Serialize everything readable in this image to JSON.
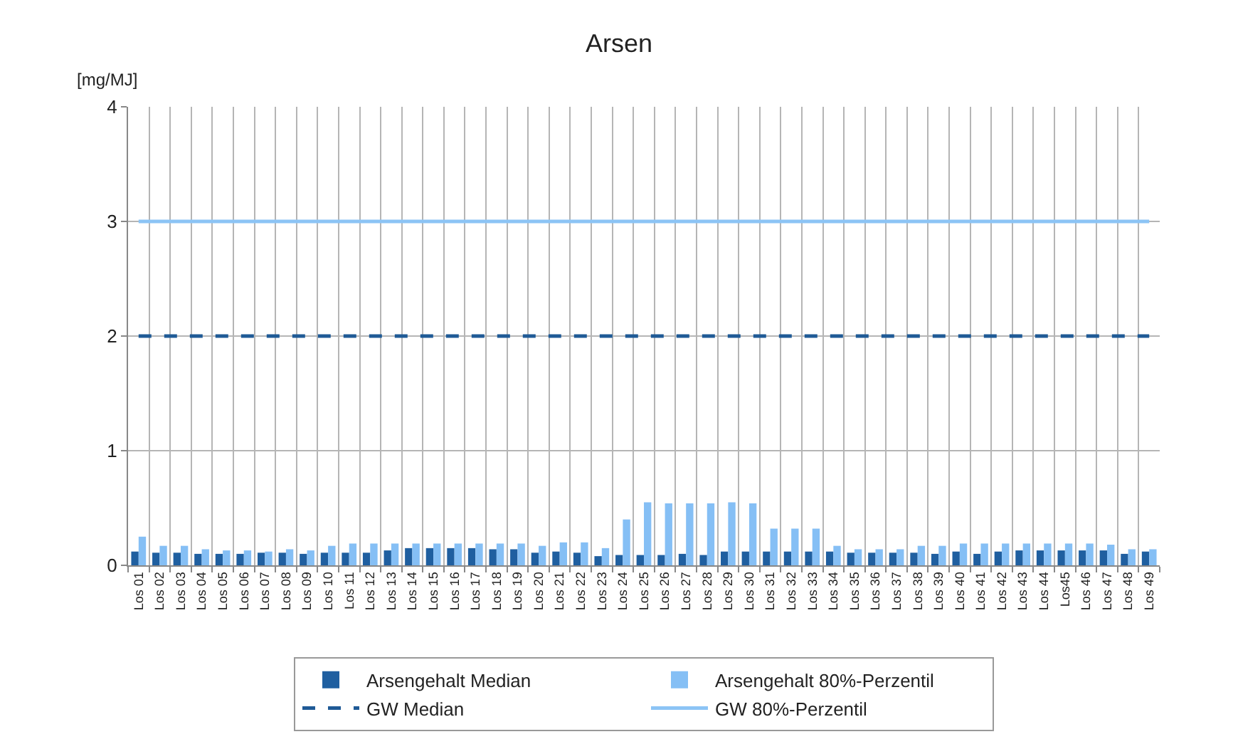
{
  "chart_data": {
    "type": "bar",
    "title": "Arsen",
    "ylabel": "[mg/MJ]",
    "categories": [
      "Los 01",
      "Los 02",
      "Los 03",
      "Los 04",
      "Los 05",
      "Los 06",
      "Los 07",
      "Los 08",
      "Los 09",
      "Los 10",
      "Los 11",
      "Los 12",
      "Los 13",
      "Los 14",
      "Los 15",
      "Los 16",
      "Los 17",
      "Los 18",
      "Los 19",
      "Los 20",
      "Los 21",
      "Los 22",
      "Los 23",
      "Los 24",
      "Los 25",
      "Los 26",
      "Los 27",
      "Los 28",
      "Los 29",
      "Los 30",
      "Los 31",
      "Los 32",
      "Los 33",
      "Los 34",
      "Los 35",
      "Los 36",
      "Los 37",
      "Los 38",
      "Los 39",
      "Los 40",
      "Los 41",
      "Los 42",
      "Los 43",
      "Los 44",
      "Los45",
      "Los 46",
      "Los 47",
      "Los 48",
      "Los 49"
    ],
    "series": [
      {
        "name": "Arsengehalt Median",
        "color": "#1f5fa0",
        "values": [
          0.12,
          0.11,
          0.11,
          0.1,
          0.1,
          0.1,
          0.11,
          0.11,
          0.1,
          0.11,
          0.11,
          0.11,
          0.13,
          0.15,
          0.15,
          0.15,
          0.15,
          0.14,
          0.14,
          0.11,
          0.12,
          0.11,
          0.08,
          0.09,
          0.09,
          0.09,
          0.1,
          0.09,
          0.12,
          0.12,
          0.12,
          0.12,
          0.12,
          0.12,
          0.11,
          0.11,
          0.11,
          0.11,
          0.1,
          0.12,
          0.1,
          0.12,
          0.13,
          0.13,
          0.13,
          0.13,
          0.13,
          0.1,
          0.12
        ]
      },
      {
        "name": "Arsengehalt 80%-Perzentil",
        "color": "#85bff5",
        "values": [
          0.25,
          0.17,
          0.17,
          0.14,
          0.13,
          0.13,
          0.12,
          0.14,
          0.13,
          0.17,
          0.19,
          0.19,
          0.19,
          0.19,
          0.19,
          0.19,
          0.19,
          0.19,
          0.19,
          0.17,
          0.2,
          0.2,
          0.15,
          0.4,
          0.55,
          0.54,
          0.54,
          0.54,
          0.55,
          0.54,
          0.32,
          0.32,
          0.32,
          0.17,
          0.14,
          0.14,
          0.14,
          0.17,
          0.17,
          0.19,
          0.19,
          0.19,
          0.19,
          0.19,
          0.19,
          0.19,
          0.18,
          0.14,
          0.14
        ]
      },
      {
        "name": "GW Median",
        "type": "line",
        "line_style": "dashed",
        "color": "#1f5a96",
        "values": [
          2,
          2,
          2,
          2,
          2,
          2,
          2,
          2,
          2,
          2,
          2,
          2,
          2,
          2,
          2,
          2,
          2,
          2,
          2,
          2,
          2,
          2,
          2,
          2,
          2,
          2,
          2,
          2,
          2,
          2,
          2,
          2,
          2,
          2,
          2,
          2,
          2,
          2,
          2,
          2,
          2,
          2,
          2,
          2,
          2,
          2,
          2,
          2,
          2
        ]
      },
      {
        "name": "GW 80%-Perzentil",
        "type": "line",
        "line_style": "solid",
        "color": "#8cc4f5",
        "values": [
          3,
          3,
          3,
          3,
          3,
          3,
          3,
          3,
          3,
          3,
          3,
          3,
          3,
          3,
          3,
          3,
          3,
          3,
          3,
          3,
          3,
          3,
          3,
          3,
          3,
          3,
          3,
          3,
          3,
          3,
          3,
          3,
          3,
          3,
          3,
          3,
          3,
          3,
          3,
          3,
          3,
          3,
          3,
          3,
          3,
          3,
          3,
          3,
          3
        ]
      }
    ],
    "ylim": [
      0,
      4
    ],
    "yticks": [
      0,
      1,
      2,
      3,
      4
    ],
    "grid": true,
    "legend": "bottom"
  }
}
